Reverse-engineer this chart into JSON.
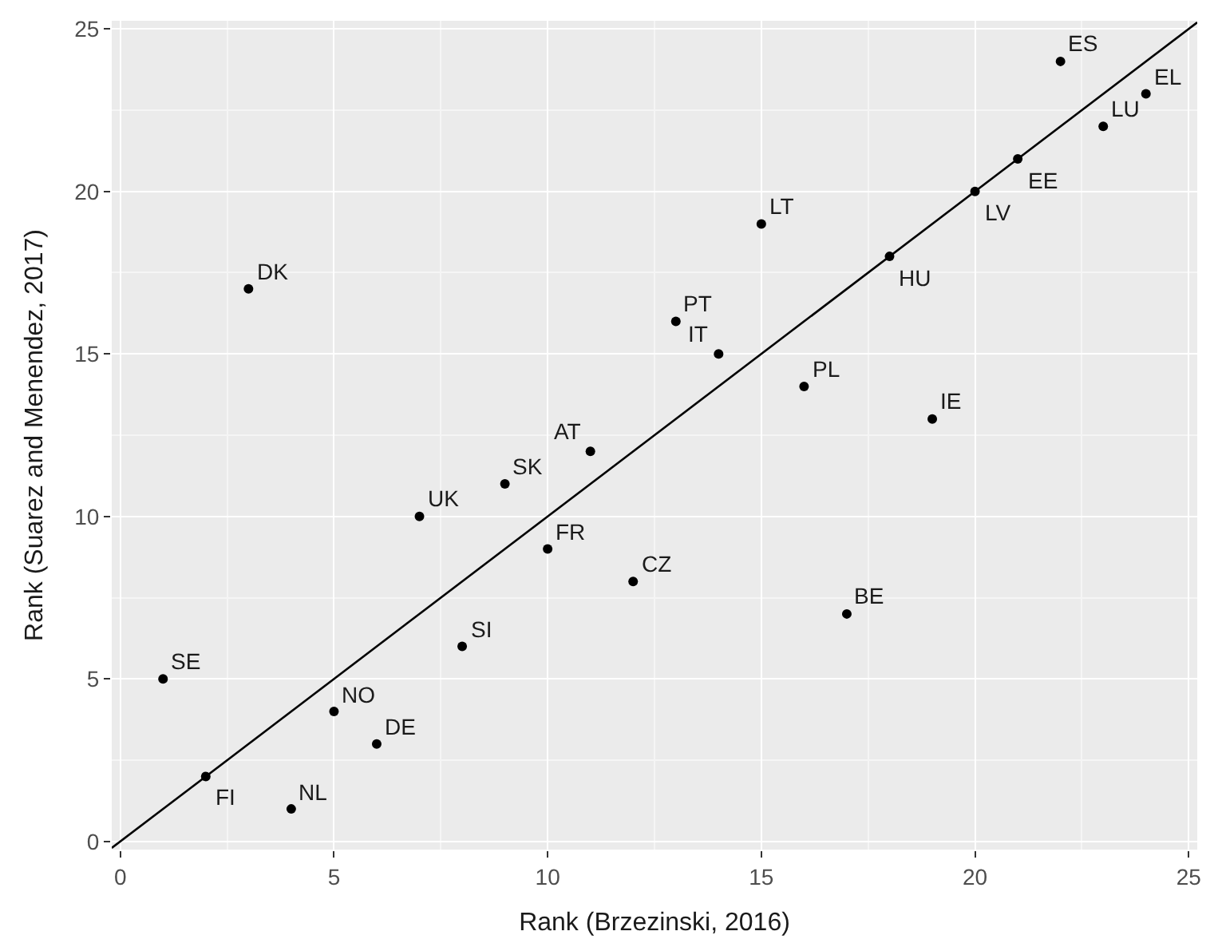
{
  "chart_data": {
    "type": "scatter",
    "xlabel": "Rank (Brzezinski, 2016)",
    "ylabel": "Rank (Suarez and Menendez, 2017)",
    "xlim": [
      -0.2,
      25.2
    ],
    "ylim": [
      -0.25,
      25.25
    ],
    "xticks": [
      0,
      5,
      10,
      15,
      20,
      25
    ],
    "yticks": [
      0,
      5,
      10,
      15,
      20,
      25
    ],
    "grid": true,
    "marker": "circle",
    "series": [
      {
        "color": "#000000",
        "x": [
          1,
          2,
          3,
          4,
          5,
          6,
          7,
          8,
          9,
          10,
          11,
          12,
          13,
          14,
          15,
          16,
          17,
          18,
          19,
          20,
          21,
          22,
          23,
          24
        ],
        "values": [
          5,
          2,
          17,
          1,
          4,
          3,
          10,
          6,
          11,
          9,
          12,
          8,
          16,
          15,
          19,
          14,
          7,
          18,
          13,
          20,
          21,
          24,
          22,
          23
        ]
      },
      {
        "type": "line",
        "color": "#000000",
        "line_style": "solid",
        "marker": "none",
        "x": [
          -0.2,
          25.2
        ],
        "values": [
          -0.2,
          25.2
        ]
      }
    ],
    "annotations": [
      {
        "text": "SE",
        "x": 1,
        "y": 5
      },
      {
        "text": "FI",
        "x": 2,
        "y": 2
      },
      {
        "text": "DK",
        "x": 3,
        "y": 17
      },
      {
        "text": "NL",
        "x": 4,
        "y": 1
      },
      {
        "text": "NO",
        "x": 5,
        "y": 4
      },
      {
        "text": "DE",
        "x": 6,
        "y": 3
      },
      {
        "text": "UK",
        "x": 7,
        "y": 10
      },
      {
        "text": "SI",
        "x": 8,
        "y": 6
      },
      {
        "text": "SK",
        "x": 9,
        "y": 11
      },
      {
        "text": "FR",
        "x": 10,
        "y": 9
      },
      {
        "text": "AT",
        "x": 11,
        "y": 12
      },
      {
        "text": "CZ",
        "x": 12,
        "y": 8
      },
      {
        "text": "PT",
        "x": 13,
        "y": 16
      },
      {
        "text": "IT",
        "x": 14,
        "y": 15
      },
      {
        "text": "LT",
        "x": 15,
        "y": 19
      },
      {
        "text": "PL",
        "x": 16,
        "y": 14
      },
      {
        "text": "BE",
        "x": 17,
        "y": 7
      },
      {
        "text": "HU",
        "x": 18,
        "y": 18
      },
      {
        "text": "IE",
        "x": 19,
        "y": 13
      },
      {
        "text": "LV",
        "x": 20,
        "y": 20
      },
      {
        "text": "EE",
        "x": 21,
        "y": 21
      },
      {
        "text": "ES",
        "x": 22,
        "y": 24
      },
      {
        "text": "LU",
        "x": 23,
        "y": 22
      },
      {
        "text": "EL",
        "x": 24,
        "y": 23
      }
    ]
  }
}
